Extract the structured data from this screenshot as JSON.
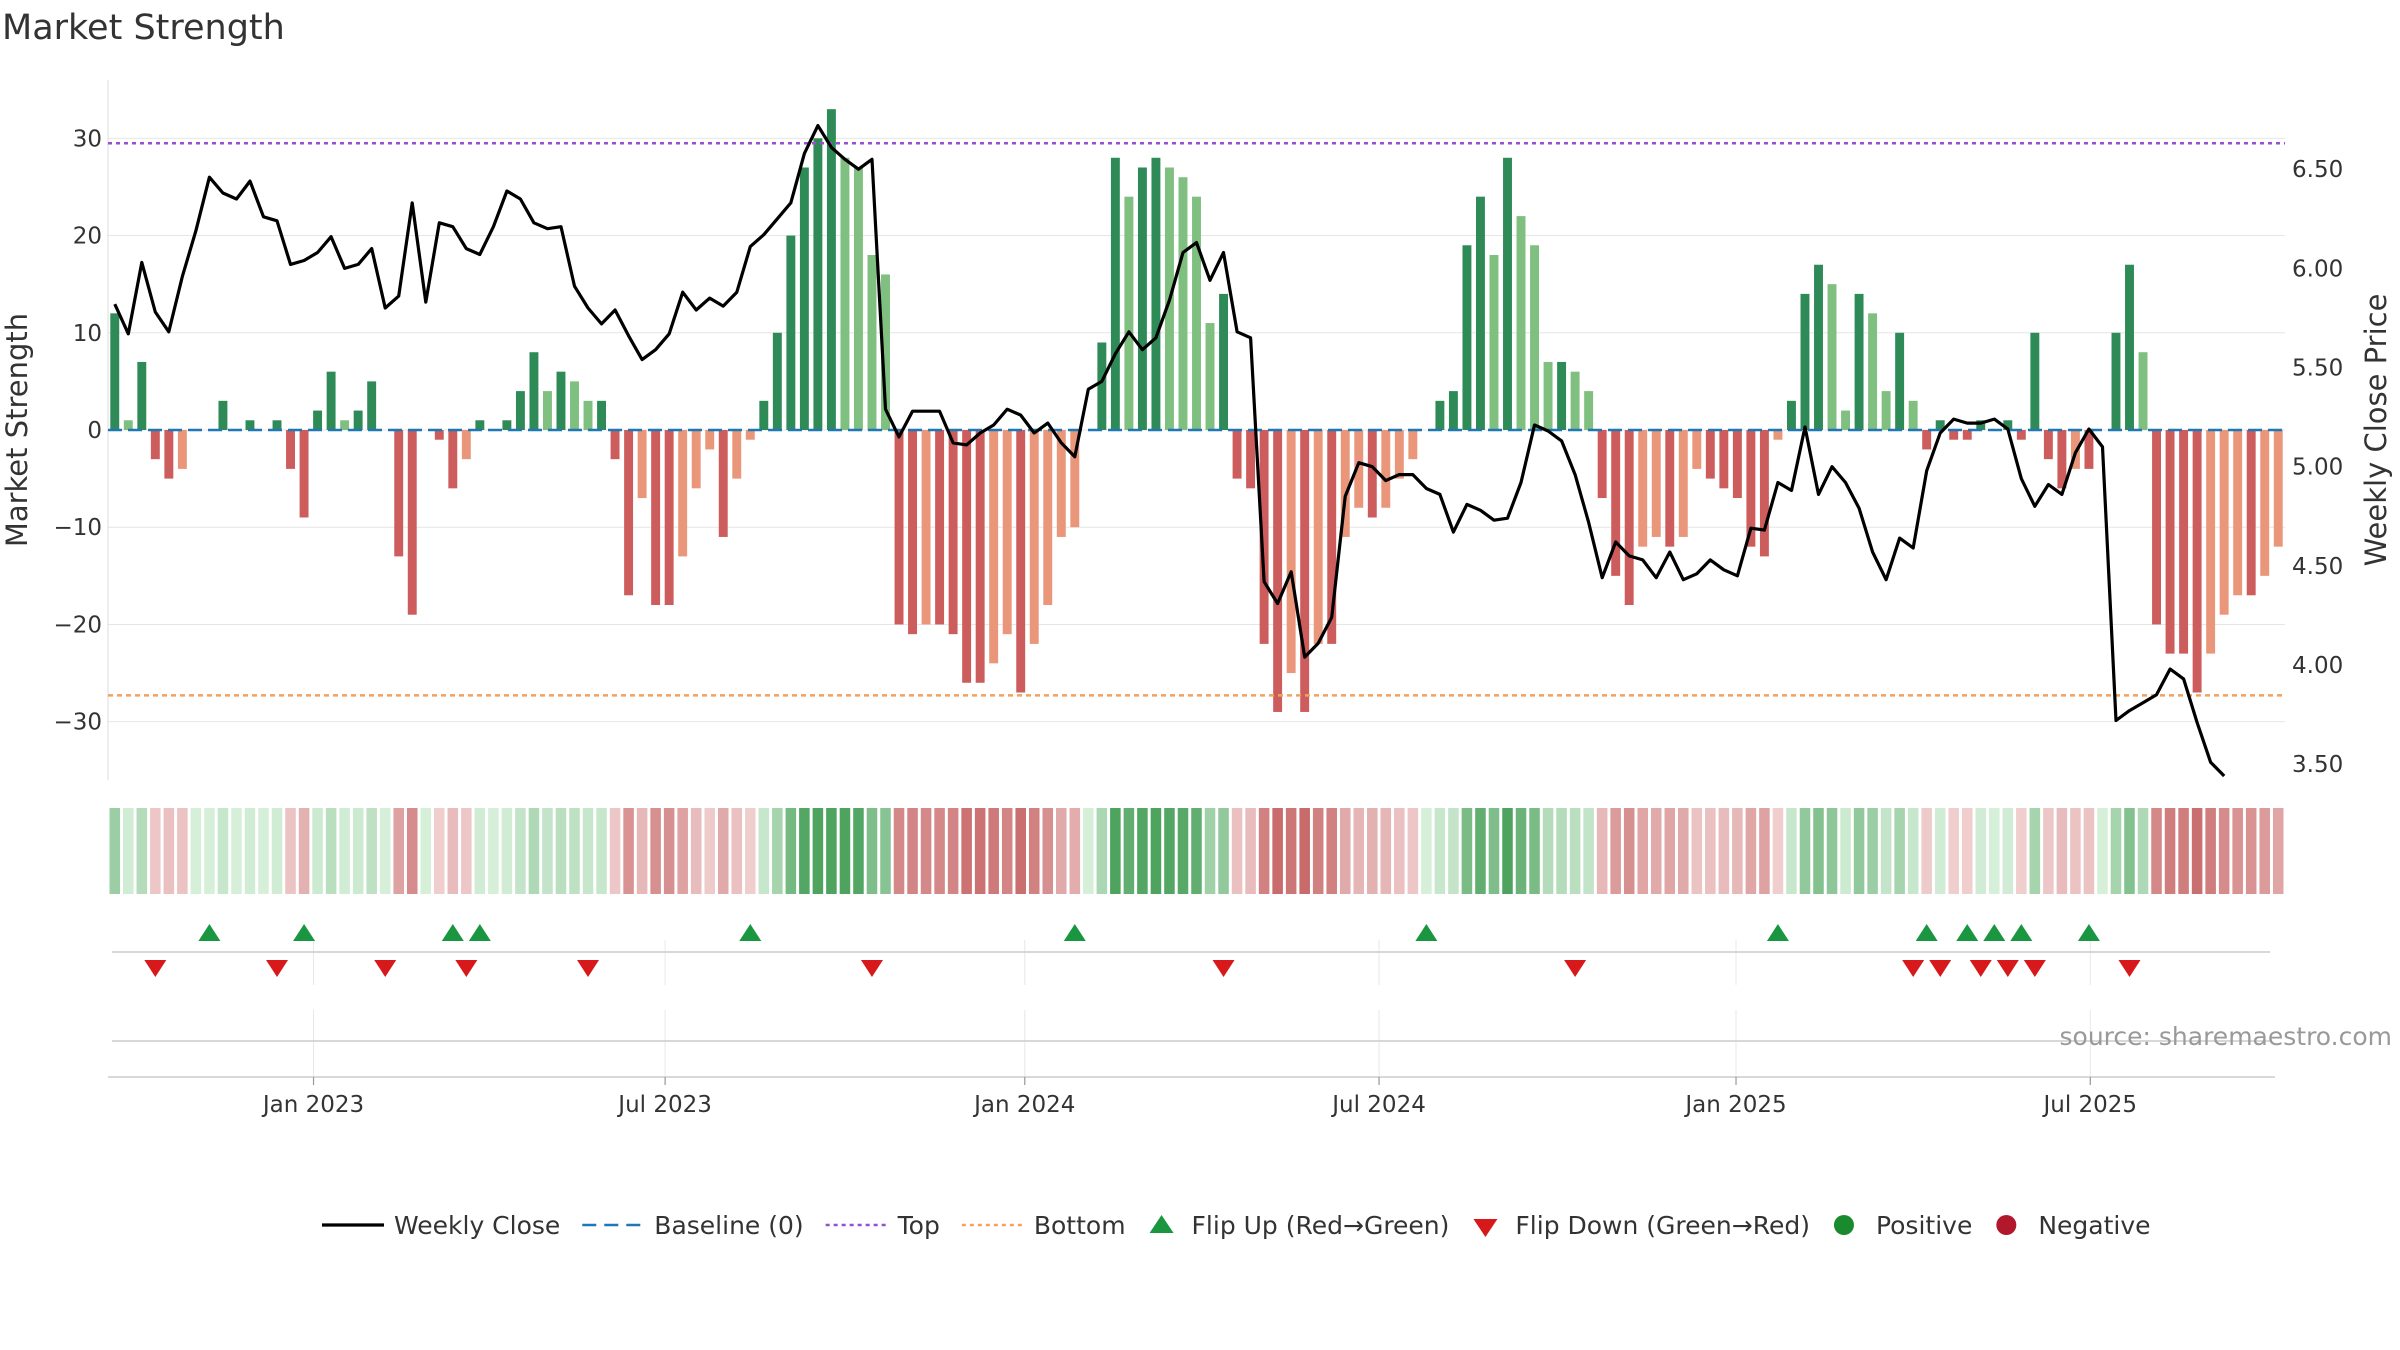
{
  "chart_data": {
    "type": "bar",
    "title": "Market Strength",
    "ylabel_left": "Market Strength",
    "ylabel_right": "Weekly Close Price",
    "source": "source: sharemaestro.com",
    "left_ylim": [
      -36,
      36
    ],
    "left_ticks": [
      30,
      20,
      10,
      0,
      -10,
      -20,
      -30
    ],
    "left_tick_labels": [
      "30",
      "20",
      "10",
      "0",
      "−10",
      "−20",
      "−30"
    ],
    "right_ylim": [
      3.42,
      6.95
    ],
    "right_ticks": [
      6.5,
      6.0,
      5.5,
      5.0,
      4.5,
      4.0,
      3.5
    ],
    "right_tick_labels": [
      "6.50",
      "6.00",
      "5.50",
      "5.00",
      "4.50",
      "4.00",
      "3.50"
    ],
    "top_level": 29.5,
    "bottom_level": -27.3,
    "baseline": 0,
    "x_ticks": [
      15.2,
      41.2,
      67.8,
      94.0,
      120.4,
      146.6
    ],
    "x_tick_labels": [
      "Jan 2023",
      "Jul 2023",
      "Jan 2024",
      "Jul 2024",
      "Jan 2025",
      "Jul 2025"
    ],
    "strength": [
      12,
      1,
      7,
      -3,
      -5,
      -4,
      0,
      0,
      3,
      0,
      1,
      0,
      1,
      -4,
      -9,
      2,
      6,
      1,
      2,
      5,
      0,
      -13,
      -19,
      0,
      -1,
      -6,
      -3,
      1,
      0,
      1,
      4,
      8,
      4,
      6,
      5,
      3,
      3,
      -3,
      -17,
      -7,
      -18,
      -18,
      -13,
      -6,
      -2,
      -11,
      -5,
      -1,
      3,
      10,
      20,
      27,
      30,
      33,
      28,
      27,
      18,
      16,
      -20,
      -21,
      -20,
      -20,
      -21,
      -26,
      -26,
      -24,
      -21,
      -27,
      -22,
      -18,
      -11,
      -10,
      0,
      9,
      28,
      24,
      27,
      28,
      27,
      26,
      24,
      11,
      14,
      -5,
      -6,
      -22,
      -29,
      -25,
      -29,
      -22,
      -22,
      -11,
      -8,
      -9,
      -8,
      -5,
      -3,
      0,
      3,
      4,
      19,
      24,
      18,
      28,
      22,
      19,
      7,
      7,
      6,
      4,
      -7,
      -15,
      -18,
      -12,
      -11,
      -12,
      -11,
      -4,
      -5,
      -6,
      -7,
      -12,
      -13,
      -1,
      3,
      14,
      17,
      15,
      2,
      14,
      12,
      4,
      10,
      3,
      -2,
      1,
      -1,
      -1,
      1,
      0,
      1,
      -1,
      10,
      -3,
      -6,
      -4,
      -4,
      0,
      10,
      17,
      8,
      -20,
      -23,
      -23,
      -27,
      -23,
      -19,
      -17,
      -17,
      -15,
      -12
    ],
    "close": [
      5.82,
      5.67,
      6.03,
      5.78,
      5.68,
      5.96,
      6.19,
      6.46,
      6.38,
      6.35,
      6.44,
      6.26,
      6.24,
      6.02,
      6.04,
      6.08,
      6.16,
      6.0,
      6.02,
      6.1,
      5.8,
      5.86,
      6.33,
      5.83,
      6.23,
      6.21,
      6.1,
      6.07,
      6.21,
      6.39,
      6.35,
      6.23,
      6.2,
      6.21,
      5.91,
      5.8,
      5.72,
      5.79,
      5.66,
      5.54,
      5.59,
      5.67,
      5.88,
      5.79,
      5.85,
      5.81,
      5.88,
      6.11,
      6.17,
      6.25,
      6.33,
      6.58,
      6.72,
      6.61,
      6.55,
      6.5,
      6.55,
      5.29,
      5.15,
      5.28,
      5.28,
      5.28,
      5.12,
      5.11,
      5.17,
      5.21,
      5.29,
      5.26,
      5.17,
      5.22,
      5.12,
      5.05,
      5.39,
      5.43,
      5.57,
      5.68,
      5.59,
      5.65,
      5.84,
      6.08,
      6.13,
      5.94,
      6.08,
      5.68,
      5.65,
      4.42,
      4.31,
      4.47,
      4.04,
      4.11,
      4.24,
      4.85,
      5.02,
      5.0,
      4.93,
      4.96,
      4.96,
      4.89,
      4.86,
      4.67,
      4.81,
      4.78,
      4.73,
      4.74,
      4.92,
      5.21,
      5.18,
      5.13,
      4.96,
      4.72,
      4.44,
      4.62,
      4.55,
      4.53,
      4.44,
      4.57,
      4.43,
      4.46,
      4.53,
      4.48,
      4.45,
      4.69,
      4.68,
      4.92,
      4.88,
      5.2,
      4.86,
      5.0,
      4.92,
      4.79,
      4.57,
      4.43,
      4.64,
      4.59,
      4.98,
      5.17,
      5.24,
      5.22,
      5.22,
      5.24,
      5.19,
      4.94,
      4.8,
      4.91,
      4.86,
      5.07,
      5.19,
      5.1,
      3.72,
      3.77,
      3.81,
      3.85,
      3.98,
      3.93,
      3.71,
      3.51,
      3.44
    ],
    "flip_up_idx": [
      7,
      14,
      25,
      27,
      47,
      71,
      97,
      123,
      134,
      137,
      139,
      141,
      146
    ],
    "flip_down_idx": [
      3,
      12,
      20,
      26,
      35,
      56,
      82,
      108,
      133,
      135,
      138,
      140,
      142,
      149
    ],
    "series": [
      {
        "name": "Market Strength",
        "kind": "bar"
      },
      {
        "name": "Weekly Close",
        "kind": "line"
      }
    ],
    "legend": [
      {
        "label": "Weekly Close",
        "symbol": "line",
        "color": "#000000"
      },
      {
        "label": "Baseline (0)",
        "symbol": "dash",
        "color": "#1f77b4"
      },
      {
        "label": "Top",
        "symbol": "dot",
        "color": "#9a4fd1"
      },
      {
        "label": "Bottom",
        "symbol": "dot",
        "color": "#f0a35e"
      },
      {
        "label": "Flip Up (Red→Green)",
        "symbol": "tri-up",
        "color": "#1a9641"
      },
      {
        "label": "Flip Down (Green→Red)",
        "symbol": "tri-down",
        "color": "#d7191c"
      },
      {
        "label": "Positive",
        "symbol": "circle",
        "color": "#1a8a2e"
      },
      {
        "label": "Negative",
        "symbol": "circle",
        "color": "#b2182b"
      }
    ],
    "colors": {
      "pos_dark": "#2e8b57",
      "pos_light": "#7fbf7f",
      "neg_dark": "#cd5c5c",
      "neg_light": "#e9967a",
      "close_line": "#000000",
      "top_line": "#9a4fd1",
      "bottom_line": "#f0a35e",
      "baseline": "#1f77b4",
      "flip_up": "#1a9641",
      "flip_down": "#d7191c",
      "grid": "#e6e6e6"
    }
  }
}
